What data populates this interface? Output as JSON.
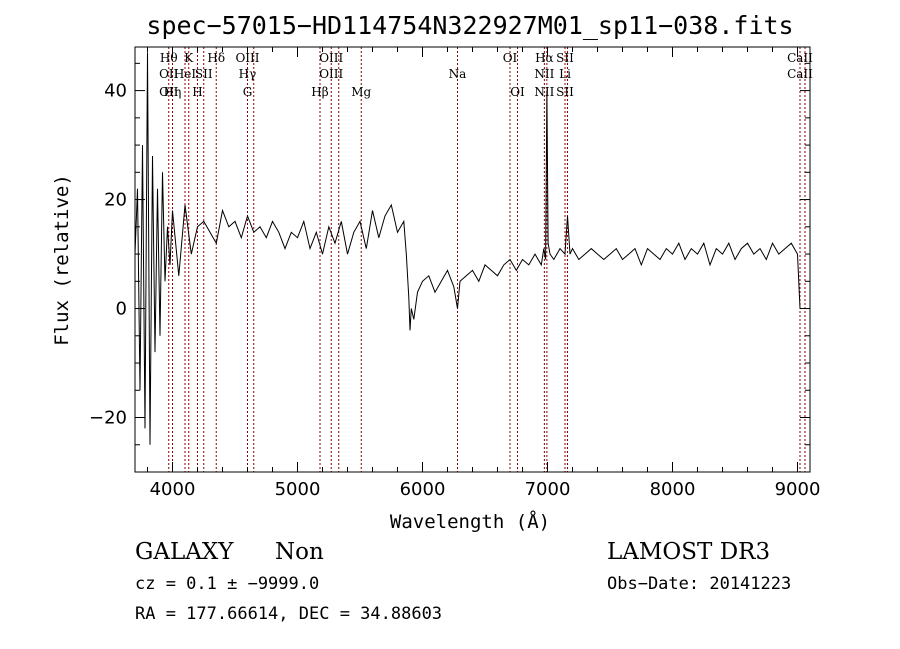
{
  "chart_data": {
    "type": "line",
    "title": "spec−57015−HD114754N322927M01_sp11−038.fits",
    "xlabel": "Wavelength (Å)",
    "ylabel": "Flux (relative)",
    "xlim": [
      3700,
      9100
    ],
    "ylim": [
      -30,
      48
    ],
    "xticks": [
      {
        "value": 4000,
        "label": "4000"
      },
      {
        "value": 5000,
        "label": "5000"
      },
      {
        "value": 6000,
        "label": "6000"
      },
      {
        "value": 7000,
        "label": "7000"
      },
      {
        "value": 8000,
        "label": "8000"
      },
      {
        "value": 9000,
        "label": "9000"
      }
    ],
    "yticks": [
      {
        "value": -20,
        "label": "−20"
      },
      {
        "value": 0,
        "label": "0"
      },
      {
        "value": 20,
        "label": "20"
      },
      {
        "value": 40,
        "label": "40"
      }
    ],
    "grid": false,
    "line_color": "#000000",
    "marker_color": "#8b0000",
    "series": [
      {
        "x": [
          3700,
          3720,
          3740,
          3760,
          3780,
          3800,
          3820,
          3840,
          3860,
          3880,
          3900,
          3920,
          3940,
          3960,
          3980,
          4000,
          4050,
          4100,
          4150,
          4200,
          4250,
          4300,
          4350,
          4400,
          4450,
          4500,
          4550,
          4600,
          4650,
          4700,
          4750,
          4800,
          4850,
          4900,
          4950,
          5000,
          5050,
          5100,
          5150,
          5200,
          5250,
          5300,
          5350,
          5400,
          5450,
          5500,
          5550,
          5600,
          5650,
          5700,
          5750,
          5800,
          5850,
          5870,
          5890,
          5900,
          5910,
          5930,
          5960,
          6000,
          6050,
          6100,
          6150,
          6200,
          6250,
          6280,
          6300,
          6350,
          6400,
          6450,
          6500,
          6550,
          6600,
          6650,
          6700,
          6750,
          6800,
          6850,
          6900,
          6950,
          6970,
          6985,
          6995,
          7005,
          7020,
          7050,
          7100,
          7140,
          7160,
          7180,
          7200,
          7250,
          7300,
          7350,
          7400,
          7450,
          7500,
          7550,
          7600,
          7650,
          7700,
          7750,
          7800,
          7850,
          7900,
          7950,
          8000,
          8050,
          8100,
          8150,
          8200,
          8250,
          8300,
          8350,
          8400,
          8450,
          8500,
          8550,
          8600,
          8650,
          8700,
          8750,
          8800,
          8850,
          8900,
          8950,
          9000,
          9020
        ],
        "y": [
          10,
          22,
          -15,
          30,
          -22,
          47,
          -25,
          28,
          -8,
          22,
          -5,
          25,
          5,
          15,
          8,
          18,
          6,
          19,
          10,
          15,
          16,
          14,
          12,
          18,
          15,
          16,
          13,
          17,
          14,
          15,
          13,
          16,
          14,
          11,
          14,
          13,
          16,
          11,
          14,
          10,
          15,
          12,
          16,
          10,
          14,
          16,
          11,
          18,
          13,
          17,
          19,
          14,
          16,
          10,
          2,
          -4,
          0,
          -2,
          3,
          5,
          6,
          3,
          5,
          7,
          4,
          0,
          5,
          6,
          7,
          5,
          8,
          7,
          6,
          8,
          9,
          7,
          9,
          8,
          10,
          8,
          11,
          9,
          40,
          12,
          10,
          9,
          11,
          10,
          17,
          10,
          11,
          9,
          10,
          11,
          10,
          9,
          10,
          11,
          9,
          10,
          11,
          8,
          11,
          10,
          9,
          11,
          10,
          12,
          9,
          11,
          10,
          12,
          8,
          11,
          10,
          12,
          9,
          11,
          12,
          10,
          11,
          9,
          12,
          10,
          11,
          12,
          10,
          0
        ]
      }
    ],
    "lines": [
      {
        "x": 3970,
        "top": "Hθ",
        "mid": "OII",
        "low": "OII"
      },
      {
        "x": 4000,
        "top": "",
        "mid": "",
        "low": "Hη"
      },
      {
        "x": 4100,
        "top": "",
        "mid": "HeI",
        "low": ""
      },
      {
        "x": 4130,
        "top": "K",
        "mid": "",
        "low": ""
      },
      {
        "x": 4200,
        "top": "",
        "mid": "",
        "low": "H"
      },
      {
        "x": 4250,
        "top": "",
        "mid": "SII",
        "low": ""
      },
      {
        "x": 4350,
        "top": "Hδ",
        "mid": "",
        "low": ""
      },
      {
        "x": 4600,
        "top": "OIII",
        "mid": "Hγ",
        "low": "G"
      },
      {
        "x": 4650,
        "top": "",
        "mid": "",
        "low": ""
      },
      {
        "x": 5180,
        "top": "",
        "mid": "",
        "low": "Hβ"
      },
      {
        "x": 5270,
        "top": "OIII",
        "mid": "OIII",
        "low": ""
      },
      {
        "x": 5330,
        "top": "",
        "mid": "",
        "low": ""
      },
      {
        "x": 5510,
        "top": "",
        "mid": "",
        "low": "Mg"
      },
      {
        "x": 6280,
        "top": "",
        "mid": "Na",
        "low": ""
      },
      {
        "x": 6700,
        "top": "OI",
        "mid": "",
        "low": ""
      },
      {
        "x": 6760,
        "top": "",
        "mid": "",
        "low": "OI"
      },
      {
        "x": 6975,
        "top": "Hα",
        "mid": "NII",
        "low": "NII"
      },
      {
        "x": 6995,
        "top": "",
        "mid": "",
        "low": ""
      },
      {
        "x": 7140,
        "top": "SII",
        "mid": "Li",
        "low": "SII"
      },
      {
        "x": 7160,
        "top": "",
        "mid": "",
        "low": ""
      },
      {
        "x": 9020,
        "top": "CaII",
        "mid": "CaII",
        "low": ""
      },
      {
        "x": 9060,
        "top": "",
        "mid": "",
        "low": ""
      }
    ]
  },
  "info": {
    "object_class": "GALAXY",
    "subclass": "Non",
    "survey": "LAMOST DR3",
    "cz": "cz = 0.1 ± −9999.0",
    "obs_date": "Obs−Date: 20141223",
    "coords": "RA = 177.66614, DEC =  34.88603"
  }
}
